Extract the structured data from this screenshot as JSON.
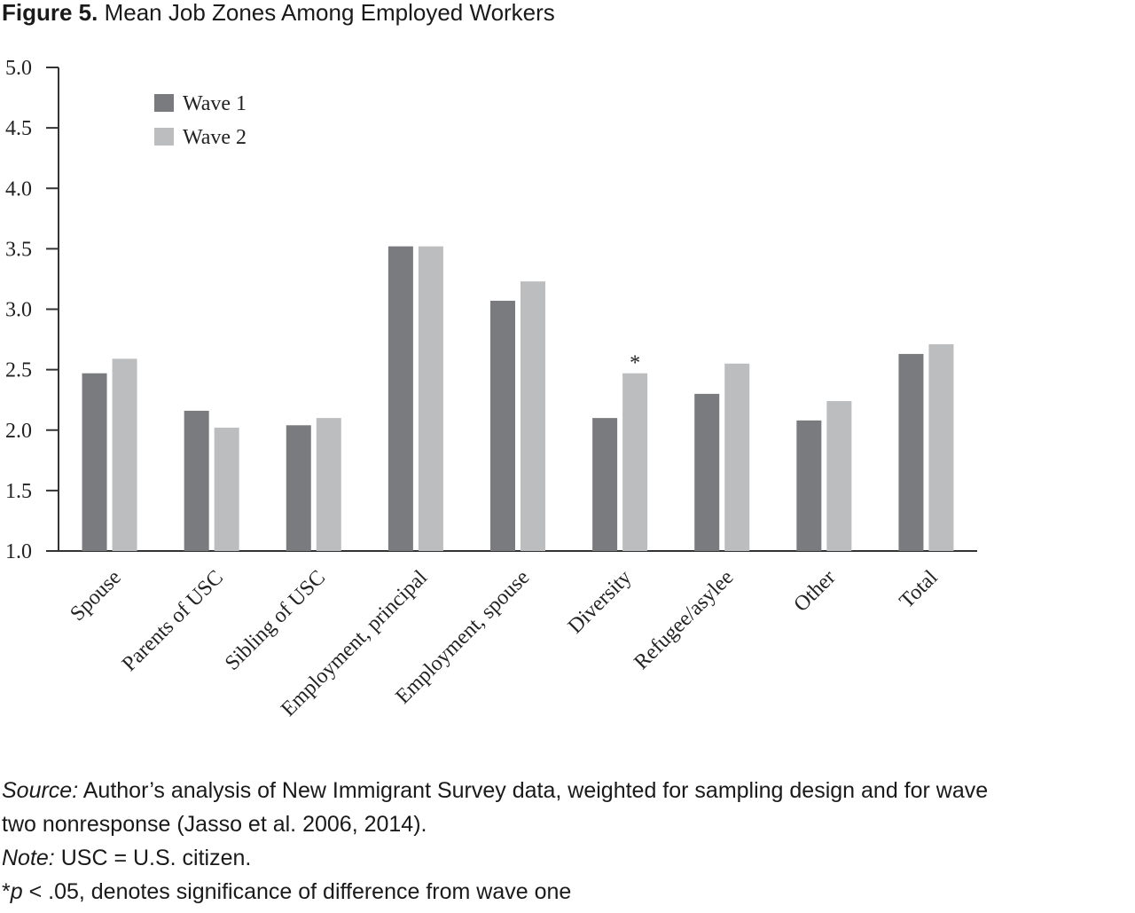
{
  "figure": {
    "label": "Figure 5.",
    "title": "Mean Job Zones Among Employed Workers"
  },
  "chart_data": {
    "type": "bar",
    "title": "Mean Job Zones Among Employed Workers",
    "xlabel": "",
    "ylabel": "",
    "ylim": [
      1.0,
      5.0
    ],
    "yticks": [
      "1.0",
      "1.5",
      "2.0",
      "2.5",
      "3.0",
      "3.5",
      "4.0",
      "4.5",
      "5.0"
    ],
    "grid": false,
    "legend_position": "top-left",
    "categories": [
      "Spouse",
      "Parents of USC",
      "Sibling of USC",
      "Employment, principal",
      "Employment, spouse",
      "Diversity",
      "Refugee/asylee",
      "Other",
      "Total"
    ],
    "series": [
      {
        "name": "Wave 1",
        "color": "#7a7b7f",
        "values": [
          2.47,
          2.16,
          2.04,
          3.52,
          3.07,
          2.1,
          2.3,
          2.08,
          2.63
        ]
      },
      {
        "name": "Wave 2",
        "color": "#bcbdbf",
        "values": [
          2.59,
          2.02,
          2.1,
          3.52,
          3.23,
          2.47,
          2.55,
          2.24,
          2.71
        ]
      }
    ],
    "annotations": [
      {
        "text": "*",
        "category": "Diversity",
        "series": "Wave 2"
      }
    ]
  },
  "notes": {
    "source_label": "Source:",
    "source_line1": " Author’s analysis of New Immigrant Survey data, weighted for sampling design and for wave",
    "source_line2": "two nonresponse (Jasso et al. 2006, 2014).",
    "note_label": "Note:",
    "note_text": " USC = U.S. citizen.",
    "sig_star": "*",
    "sig_p": "p",
    "sig_text": " < .05, denotes significance of difference from wave one"
  }
}
